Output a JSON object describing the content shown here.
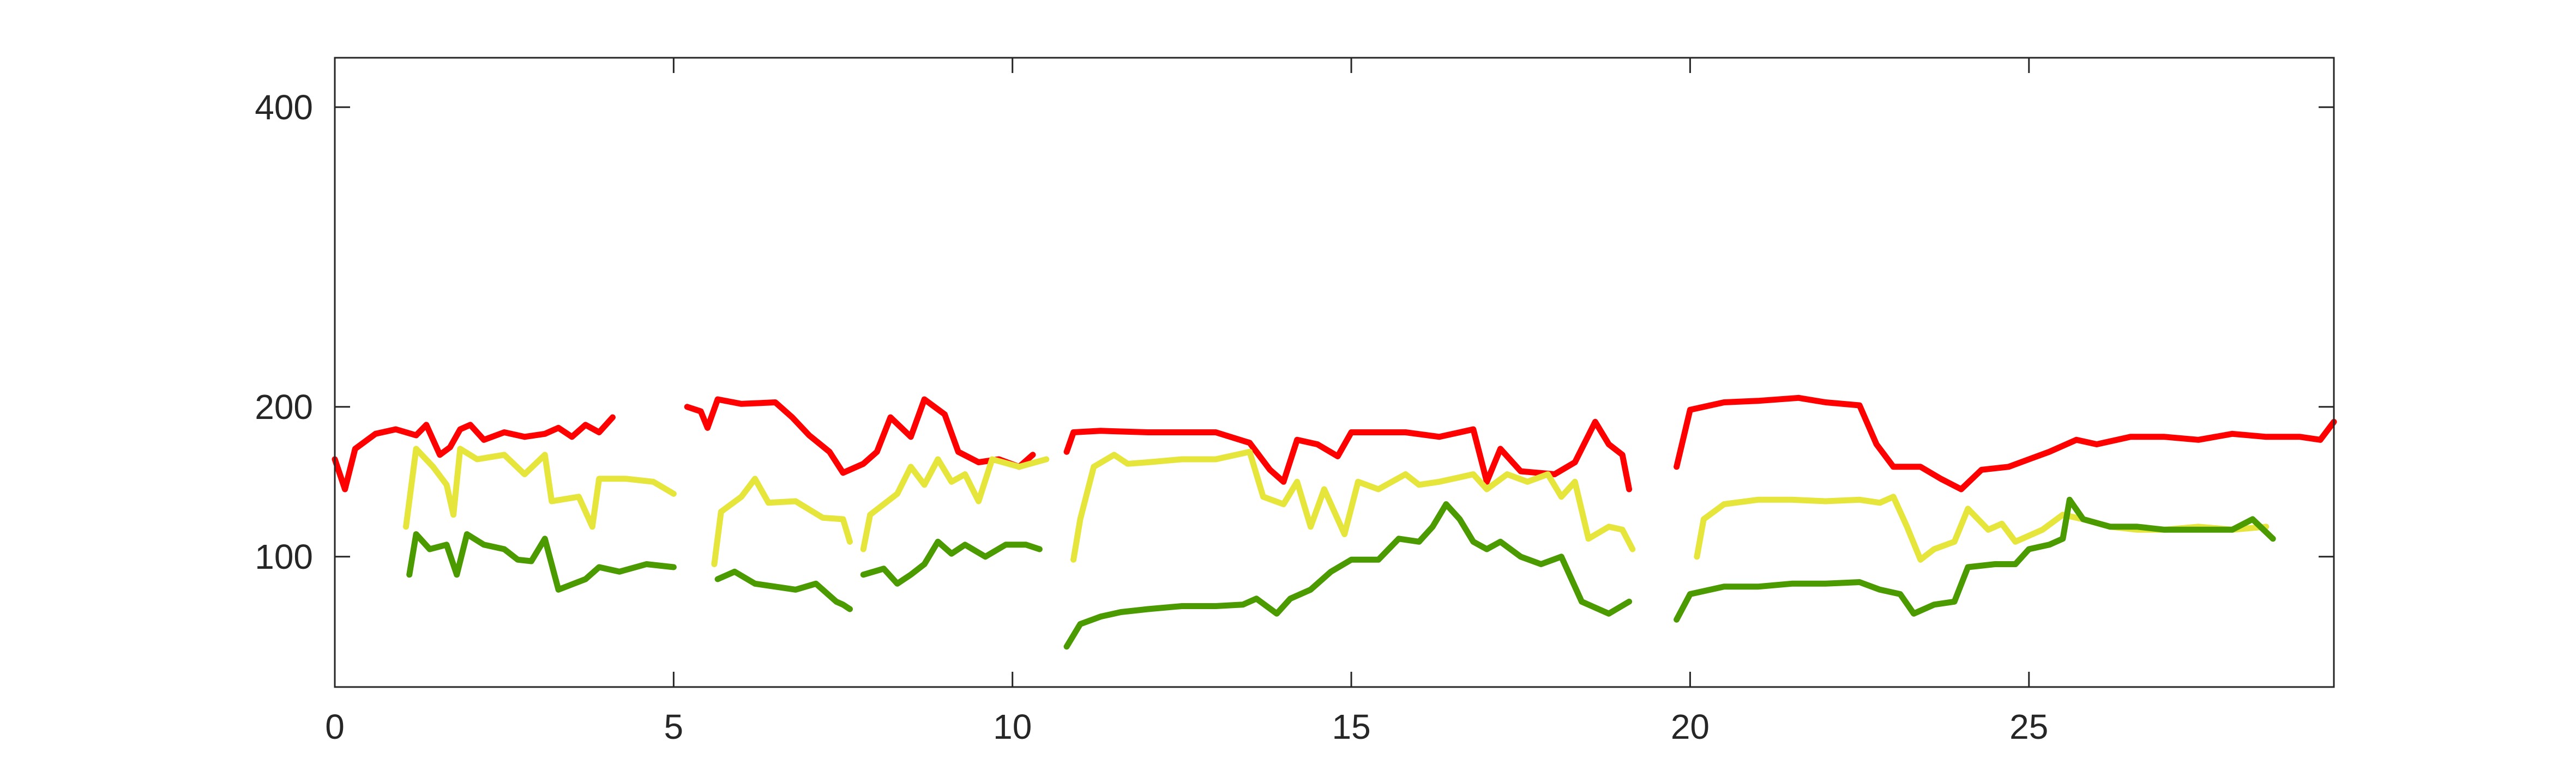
{
  "chart_data": {
    "type": "line",
    "title": "",
    "xlabel": "",
    "ylabel": "",
    "xlim": [
      0,
      29.5
    ],
    "ylim": [
      13,
      433
    ],
    "xticks": [
      0,
      5,
      10,
      15,
      20,
      25
    ],
    "yticks": [
      100,
      200,
      400
    ],
    "xtick_labels": [
      "0",
      "5",
      "10",
      "15",
      "20",
      "25"
    ],
    "ytick_labels": [
      "100",
      "200",
      "400"
    ],
    "grid": false,
    "legend": "none",
    "series": [
      {
        "color": "#ff0000",
        "segments": [
          [
            [
              0.0,
              165
            ],
            [
              0.15,
              145
            ],
            [
              0.3,
              172
            ],
            [
              0.6,
              182
            ],
            [
              0.9,
              185
            ],
            [
              1.2,
              181
            ],
            [
              1.35,
              188
            ],
            [
              1.55,
              168
            ],
            [
              1.7,
              173
            ],
            [
              1.85,
              185
            ],
            [
              2.0,
              188
            ],
            [
              2.2,
              178
            ],
            [
              2.5,
              183
            ],
            [
              2.8,
              180
            ],
            [
              3.1,
              182
            ],
            [
              3.3,
              186
            ],
            [
              3.5,
              180
            ],
            [
              3.7,
              188
            ],
            [
              3.9,
              183
            ],
            [
              4.1,
              193
            ]
          ],
          [
            [
              5.2,
              200
            ],
            [
              5.4,
              197
            ],
            [
              5.5,
              186
            ],
            [
              5.65,
              205
            ],
            [
              6.0,
              202
            ],
            [
              6.5,
              203
            ],
            [
              6.75,
              193
            ],
            [
              7.0,
              181
            ],
            [
              7.3,
              170
            ],
            [
              7.5,
              156
            ],
            [
              7.8,
              162
            ],
            [
              8.0,
              170
            ],
            [
              8.2,
              193
            ],
            [
              8.5,
              180
            ],
            [
              8.7,
              205
            ],
            [
              9.0,
              195
            ],
            [
              9.2,
              170
            ],
            [
              9.5,
              163
            ],
            [
              9.8,
              165
            ],
            [
              10.1,
              160
            ],
            [
              10.3,
              168
            ]
          ],
          [
            [
              10.8,
              170
            ],
            [
              10.9,
              183
            ],
            [
              11.3,
              184
            ],
            [
              12.0,
              183
            ],
            [
              13.0,
              183
            ],
            [
              13.5,
              176
            ],
            [
              13.8,
              158
            ],
            [
              14.0,
              150
            ],
            [
              14.2,
              178
            ],
            [
              14.5,
              175
            ],
            [
              14.8,
              167
            ],
            [
              15.0,
              183
            ],
            [
              15.8,
              183
            ],
            [
              16.3,
              180
            ],
            [
              16.8,
              185
            ],
            [
              17.0,
              150
            ],
            [
              17.2,
              172
            ],
            [
              17.5,
              157
            ],
            [
              18.0,
              155
            ],
            [
              18.3,
              163
            ],
            [
              18.6,
              190
            ],
            [
              18.8,
              175
            ],
            [
              19.0,
              168
            ],
            [
              19.1,
              145
            ]
          ],
          [
            [
              19.8,
              160
            ],
            [
              20.0,
              198
            ],
            [
              20.5,
              203
            ],
            [
              21.0,
              204
            ],
            [
              21.6,
              206
            ],
            [
              22.0,
              203
            ],
            [
              22.5,
              201
            ],
            [
              22.75,
              175
            ],
            [
              23.0,
              160
            ],
            [
              23.4,
              160
            ],
            [
              23.7,
              152
            ],
            [
              24.0,
              145
            ],
            [
              24.3,
              158
            ],
            [
              24.7,
              160
            ],
            [
              25.0,
              165
            ],
            [
              25.3,
              170
            ],
            [
              25.7,
              178
            ],
            [
              26.0,
              175
            ],
            [
              26.5,
              180
            ],
            [
              27.0,
              180
            ],
            [
              27.5,
              178
            ],
            [
              28.0,
              182
            ],
            [
              28.5,
              180
            ],
            [
              29.0,
              180
            ],
            [
              29.3,
              178
            ],
            [
              29.5,
              190
            ]
          ]
        ]
      },
      {
        "color": "#e5e53c",
        "segments": [
          [
            [
              1.05,
              120
            ],
            [
              1.2,
              172
            ],
            [
              1.45,
              160
            ],
            [
              1.65,
              148
            ],
            [
              1.75,
              128
            ],
            [
              1.85,
              172
            ],
            [
              2.1,
              165
            ],
            [
              2.5,
              168
            ],
            [
              2.8,
              155
            ],
            [
              3.1,
              168
            ],
            [
              3.2,
              137
            ],
            [
              3.6,
              140
            ],
            [
              3.8,
              120
            ],
            [
              3.9,
              152
            ],
            [
              4.3,
              152
            ],
            [
              4.7,
              150
            ],
            [
              5.0,
              142
            ]
          ],
          [
            [
              5.6,
              95
            ],
            [
              5.7,
              130
            ],
            [
              6.0,
              140
            ],
            [
              6.2,
              152
            ],
            [
              6.4,
              136
            ],
            [
              6.8,
              137
            ],
            [
              7.2,
              126
            ],
            [
              7.5,
              125
            ],
            [
              7.6,
              110
            ]
          ],
          [
            [
              7.8,
              105
            ],
            [
              7.9,
              128
            ],
            [
              8.3,
              142
            ],
            [
              8.5,
              160
            ],
            [
              8.7,
              148
            ],
            [
              8.9,
              165
            ],
            [
              9.1,
              150
            ],
            [
              9.3,
              155
            ],
            [
              9.5,
              137
            ],
            [
              9.7,
              165
            ],
            [
              10.1,
              160
            ],
            [
              10.5,
              165
            ]
          ],
          [
            [
              10.9,
              98
            ],
            [
              11.0,
              125
            ],
            [
              11.2,
              160
            ],
            [
              11.5,
              168
            ],
            [
              11.7,
              162
            ],
            [
              12.0,
              163
            ],
            [
              12.5,
              165
            ],
            [
              13.0,
              165
            ],
            [
              13.5,
              170
            ],
            [
              13.7,
              140
            ],
            [
              14.0,
              135
            ],
            [
              14.2,
              150
            ],
            [
              14.4,
              120
            ],
            [
              14.6,
              145
            ],
            [
              14.9,
              115
            ],
            [
              15.1,
              150
            ],
            [
              15.4,
              145
            ],
            [
              15.8,
              155
            ],
            [
              16.0,
              148
            ],
            [
              16.3,
              150
            ],
            [
              16.8,
              155
            ],
            [
              17.0,
              145
            ],
            [
              17.3,
              155
            ],
            [
              17.6,
              150
            ],
            [
              17.9,
              155
            ],
            [
              18.1,
              140
            ],
            [
              18.3,
              150
            ],
            [
              18.5,
              112
            ],
            [
              18.8,
              120
            ],
            [
              19.0,
              118
            ],
            [
              19.15,
              105
            ]
          ],
          [
            [
              20.1,
              100
            ],
            [
              20.2,
              125
            ],
            [
              20.5,
              135
            ],
            [
              21.0,
              138
            ],
            [
              21.5,
              138
            ],
            [
              22.0,
              137
            ],
            [
              22.5,
              138
            ],
            [
              22.8,
              136
            ],
            [
              23.0,
              140
            ],
            [
              23.2,
              120
            ],
            [
              23.4,
              98
            ],
            [
              23.6,
              105
            ],
            [
              23.9,
              110
            ],
            [
              24.1,
              132
            ],
            [
              24.4,
              118
            ],
            [
              24.6,
              122
            ],
            [
              24.8,
              110
            ],
            [
              25.2,
              118
            ],
            [
              25.5,
              128
            ],
            [
              25.8,
              125
            ],
            [
              26.2,
              120
            ],
            [
              26.6,
              118
            ],
            [
              27.0,
              118
            ],
            [
              27.5,
              120
            ],
            [
              28.0,
              118
            ],
            [
              28.5,
              120
            ]
          ]
        ]
      },
      {
        "color": "#4a9a00",
        "segments": [
          [
            [
              1.1,
              88
            ],
            [
              1.2,
              115
            ],
            [
              1.4,
              105
            ],
            [
              1.65,
              108
            ],
            [
              1.8,
              88
            ],
            [
              1.95,
              115
            ],
            [
              2.2,
              108
            ],
            [
              2.5,
              105
            ],
            [
              2.7,
              98
            ],
            [
              2.9,
              97
            ],
            [
              3.1,
              112
            ],
            [
              3.3,
              78
            ],
            [
              3.7,
              85
            ],
            [
              3.9,
              93
            ],
            [
              4.2,
              90
            ],
            [
              4.6,
              95
            ],
            [
              5.0,
              93
            ]
          ],
          [
            [
              5.65,
              85
            ],
            [
              5.9,
              90
            ],
            [
              6.2,
              82
            ],
            [
              6.5,
              80
            ],
            [
              6.8,
              78
            ],
            [
              7.1,
              82
            ],
            [
              7.4,
              70
            ],
            [
              7.5,
              68
            ],
            [
              7.6,
              65
            ]
          ],
          [
            [
              7.8,
              88
            ],
            [
              8.1,
              92
            ],
            [
              8.3,
              82
            ],
            [
              8.5,
              88
            ],
            [
              8.7,
              95
            ],
            [
              8.9,
              110
            ],
            [
              9.1,
              102
            ],
            [
              9.3,
              108
            ],
            [
              9.6,
              100
            ],
            [
              9.9,
              108
            ],
            [
              10.2,
              108
            ],
            [
              10.4,
              105
            ]
          ],
          [
            [
              10.8,
              40
            ],
            [
              11.0,
              55
            ],
            [
              11.3,
              60
            ],
            [
              11.6,
              63
            ],
            [
              12.0,
              65
            ],
            [
              12.5,
              67
            ],
            [
              13.0,
              67
            ],
            [
              13.4,
              68
            ],
            [
              13.6,
              72
            ],
            [
              13.9,
              62
            ],
            [
              14.1,
              72
            ],
            [
              14.4,
              78
            ],
            [
              14.7,
              90
            ],
            [
              15.0,
              98
            ],
            [
              15.4,
              98
            ],
            [
              15.7,
              112
            ],
            [
              16.0,
              110
            ],
            [
              16.2,
              120
            ],
            [
              16.4,
              135
            ],
            [
              16.6,
              125
            ],
            [
              16.8,
              110
            ],
            [
              17.0,
              105
            ],
            [
              17.2,
              110
            ],
            [
              17.5,
              100
            ],
            [
              17.8,
              95
            ],
            [
              18.1,
              100
            ],
            [
              18.4,
              70
            ],
            [
              18.8,
              62
            ],
            [
              19.1,
              70
            ]
          ],
          [
            [
              19.8,
              58
            ],
            [
              20.0,
              75
            ],
            [
              20.5,
              80
            ],
            [
              21.0,
              80
            ],
            [
              21.5,
              82
            ],
            [
              22.0,
              82
            ],
            [
              22.5,
              83
            ],
            [
              22.8,
              78
            ],
            [
              23.1,
              75
            ],
            [
              23.3,
              62
            ],
            [
              23.6,
              68
            ],
            [
              23.9,
              70
            ],
            [
              24.1,
              93
            ],
            [
              24.5,
              95
            ],
            [
              24.8,
              95
            ],
            [
              25.0,
              105
            ],
            [
              25.3,
              108
            ],
            [
              25.5,
              112
            ],
            [
              25.6,
              138
            ],
            [
              25.8,
              125
            ],
            [
              26.2,
              120
            ],
            [
              26.6,
              120
            ],
            [
              27.0,
              118
            ],
            [
              27.5,
              118
            ],
            [
              28.0,
              118
            ],
            [
              28.3,
              125
            ],
            [
              28.6,
              112
            ]
          ]
        ]
      }
    ]
  }
}
